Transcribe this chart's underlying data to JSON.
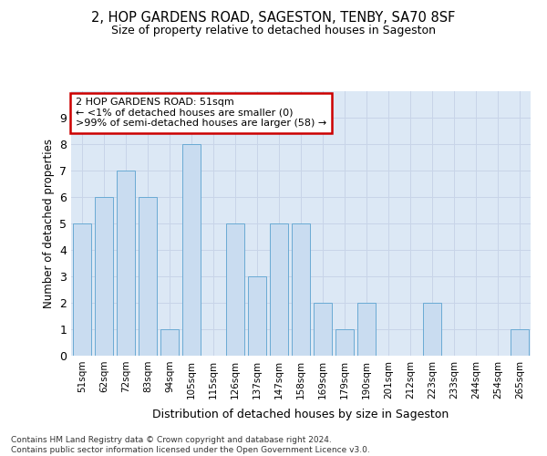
{
  "title1": "2, HOP GARDENS ROAD, SAGESTON, TENBY, SA70 8SF",
  "title2": "Size of property relative to detached houses in Sageston",
  "xlabel": "Distribution of detached houses by size in Sageston",
  "ylabel": "Number of detached properties",
  "categories": [
    "51sqm",
    "62sqm",
    "72sqm",
    "83sqm",
    "94sqm",
    "105sqm",
    "115sqm",
    "126sqm",
    "137sqm",
    "147sqm",
    "158sqm",
    "169sqm",
    "179sqm",
    "190sqm",
    "201sqm",
    "212sqm",
    "223sqm",
    "233sqm",
    "244sqm",
    "254sqm",
    "265sqm"
  ],
  "values": [
    5,
    6,
    7,
    6,
    1,
    8,
    0,
    5,
    3,
    5,
    5,
    2,
    1,
    2,
    0,
    0,
    2,
    0,
    0,
    0,
    1
  ],
  "bar_color": "#c9dcf0",
  "bar_edge_color": "#6aaad4",
  "annotation_text": "2 HOP GARDENS ROAD: 51sqm\n← <1% of detached houses are smaller (0)\n>99% of semi-detached houses are larger (58) →",
  "annotation_box_color": "#ffffff",
  "annotation_box_edge_color": "#cc0000",
  "ylim": [
    0,
    10
  ],
  "yticks": [
    0,
    1,
    2,
    3,
    4,
    5,
    6,
    7,
    8,
    9,
    10
  ],
  "grid_color": "#c8d4e8",
  "plot_bg_color": "#dce8f5",
  "footer1": "Contains HM Land Registry data © Crown copyright and database right 2024.",
  "footer2": "Contains public sector information licensed under the Open Government Licence v3.0."
}
